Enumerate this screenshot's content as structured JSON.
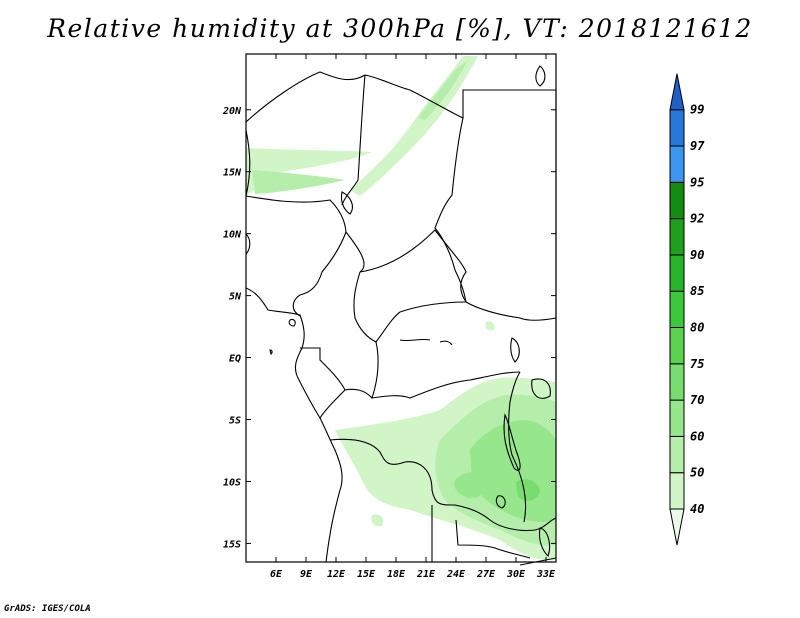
{
  "title": "Relative humidity at 300hPa [%], VT: 2018121612",
  "credit": "GrADS: IGES/COLA",
  "map": {
    "variable": "Relative humidity",
    "level": "300hPa",
    "units": "%",
    "valid_time": "2018121612",
    "lon_range": [
      3,
      34
    ],
    "lat_range": [
      -16.5,
      24.5
    ],
    "lon_ticks": [
      {
        "value": 6,
        "label": "6E"
      },
      {
        "value": 9,
        "label": "9E"
      },
      {
        "value": 12,
        "label": "12E"
      },
      {
        "value": 15,
        "label": "15E"
      },
      {
        "value": 18,
        "label": "18E"
      },
      {
        "value": 21,
        "label": "21E"
      },
      {
        "value": 24,
        "label": "24E"
      },
      {
        "value": 27,
        "label": "27E"
      },
      {
        "value": 30,
        "label": "30E"
      },
      {
        "value": 33,
        "label": "33E"
      }
    ],
    "lat_ticks": [
      {
        "value": 20,
        "label": "20N"
      },
      {
        "value": 15,
        "label": "15N"
      },
      {
        "value": 10,
        "label": "10N"
      },
      {
        "value": 5,
        "label": "5N"
      },
      {
        "value": 0,
        "label": "EQ"
      },
      {
        "value": -5,
        "label": "5S"
      },
      {
        "value": -10,
        "label": "10S"
      },
      {
        "value": -15,
        "label": "15S"
      }
    ]
  },
  "colorbar": {
    "levels": [
      "40",
      "50",
      "60",
      "70",
      "75",
      "80",
      "85",
      "90",
      "92",
      "95",
      "97",
      "99"
    ],
    "colors": [
      "#ebfaeb",
      "#d2f5c8",
      "#b4eeaa",
      "#96e68c",
      "#78dc6e",
      "#5ad250",
      "#3cc83c",
      "#28b428",
      "#1ea01e",
      "#148c14",
      "#3c96f0",
      "#2878dc",
      "#1e5fc8"
    ]
  }
}
